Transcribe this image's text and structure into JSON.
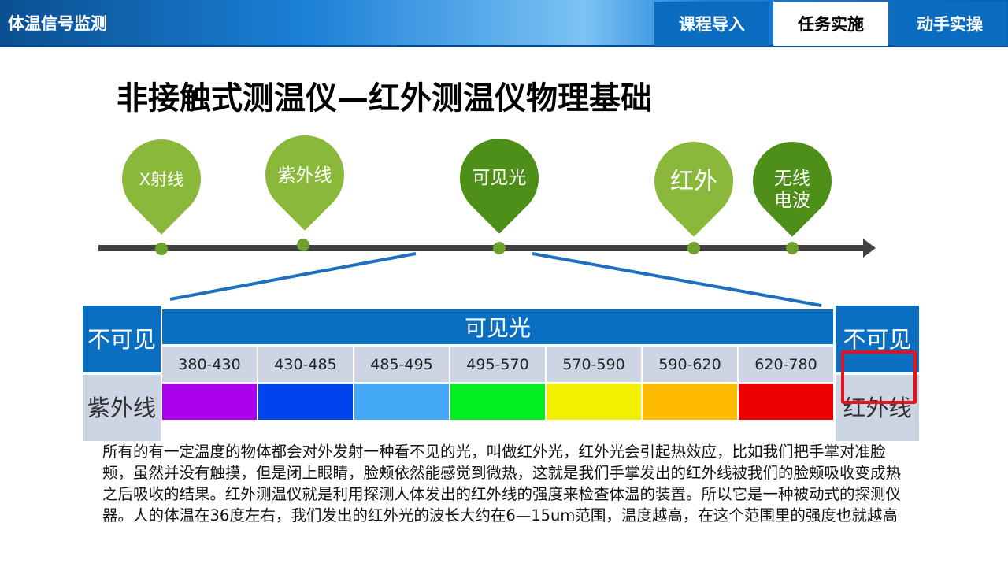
{
  "header": {
    "app_title": "体温信号监测",
    "nav": [
      "课程导入",
      "任务实施",
      "动手实操"
    ],
    "active_nav": 1
  },
  "slide": {
    "title": "非接触式测温仪—红外测温仪物理基础",
    "spectrum_markers": [
      {
        "label": "X射线",
        "color": "#8ab83a"
      },
      {
        "label": "紫外线",
        "color": "#8ab83a"
      },
      {
        "label": "可见光",
        "color": "#4e8f1a"
      },
      {
        "label": "红外",
        "color": "#8ab83a"
      },
      {
        "label": "无线电波",
        "line1": "无线",
        "line2": "电波",
        "color": "#4e8f1a"
      }
    ],
    "table": {
      "left_top": "不可见",
      "left_bottom": "紫外线",
      "visible_header": "可见光",
      "ranges": [
        "380-430",
        "430-485",
        "485-495",
        "495-570",
        "570-590",
        "590-620",
        "620-780"
      ],
      "colors": [
        "#aa00ee",
        "#0044ee",
        "#44aaf8",
        "#00ee22",
        "#f0f000",
        "#ffbb00",
        "#ee0000"
      ],
      "right_top": "不可见",
      "right_bottom": "红外线"
    },
    "paragraph": "所有的有一定温度的物体都会对外发射一种看不见的光，叫做红外光，红外光会引起热效应，比如我们把手掌对准脸颊，虽然并没有触摸，但是闭上眼睛，脸颊依然能感觉到微热，这就是我们手掌发出的红外线被我们的脸颊吸收变成热之后吸收的结果。红外测温仪就是利用探测人体发出的红外线的强度来检查体温的装置。所以它是一种被动式的探测仪器。人的体温在36度左右，我们发出的红外光的波长大约在6—15um范围，温度越高，在这个范围里的强度也就越高"
  }
}
